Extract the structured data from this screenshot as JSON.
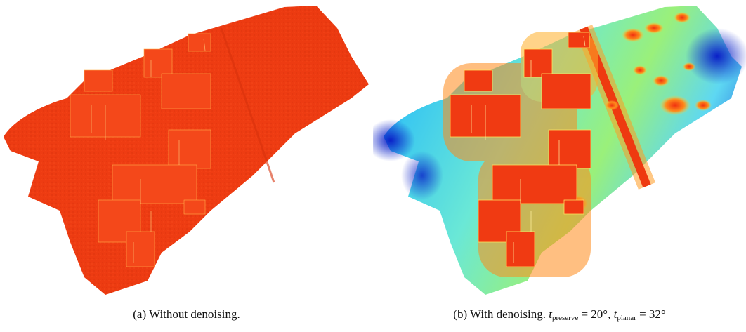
{
  "figure": {
    "panel_a": {
      "caption": "(a) Without denoising."
    },
    "panel_b": {
      "caption_prefix": "(b) With denoising. ",
      "param1_symbol": "t",
      "param1_sub": "preserve",
      "param1_value": " = 20°, ",
      "param2_symbol": "t",
      "param2_sub": "planar",
      "param2_value": " = 32°"
    },
    "colors": {
      "noisy_red": "#ef3b12",
      "hot_edge": "#ff5a10",
      "highlight": "#ffd84a",
      "ground_cyan": "#58e4e8",
      "low_blue": "#0a2bd0",
      "mid_green": "#8ff08a"
    }
  }
}
